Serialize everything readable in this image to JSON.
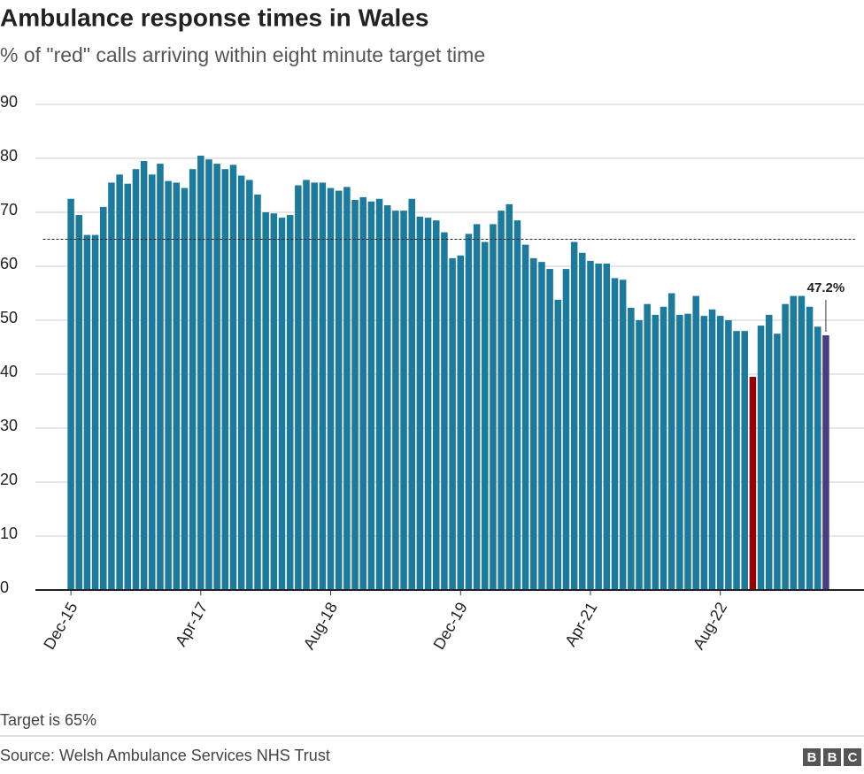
{
  "chart_data": {
    "type": "bar",
    "title": "Ambulance response times in Wales",
    "subtitle": "% of \"red\" calls arriving within eight minute target time",
    "categories": [
      "Dec-15",
      null,
      null,
      null,
      null,
      null,
      null,
      null,
      null,
      null,
      null,
      null,
      null,
      null,
      null,
      null,
      "Apr-17",
      null,
      null,
      null,
      null,
      null,
      null,
      null,
      null,
      null,
      null,
      null,
      null,
      null,
      null,
      null,
      "Aug-18",
      null,
      null,
      null,
      null,
      null,
      null,
      null,
      null,
      null,
      null,
      null,
      null,
      null,
      null,
      null,
      "Dec-19",
      null,
      null,
      null,
      null,
      null,
      null,
      null,
      null,
      null,
      null,
      null,
      null,
      null,
      null,
      null,
      "Apr-21",
      null,
      null,
      null,
      null,
      null,
      null,
      null,
      null,
      null,
      null,
      null,
      null,
      null,
      null,
      null,
      "Aug-22",
      null,
      null,
      null,
      null,
      null,
      null,
      null,
      null,
      null,
      null,
      null,
      null,
      null
    ],
    "values": [
      72.5,
      69.5,
      65.8,
      65.8,
      71,
      75.5,
      77,
      75.3,
      78,
      79.5,
      77,
      79,
      75.8,
      75.5,
      74.5,
      78,
      80.5,
      79.8,
      79,
      78,
      78.8,
      76.8,
      76,
      73.3,
      70,
      69.8,
      69,
      69.5,
      75,
      76,
      75.5,
      75.5,
      74.5,
      74,
      74.7,
      72.3,
      72.8,
      72,
      72.5,
      71.3,
      70.3,
      70.3,
      72.5,
      69.2,
      69,
      68.5,
      66.3,
      61.5,
      62,
      66,
      67.8,
      64.5,
      67.8,
      70.3,
      71.5,
      68.5,
      64,
      61.5,
      60.8,
      59.5,
      53.8,
      59.5,
      64.5,
      62.5,
      61,
      60.5,
      60.5,
      57.8,
      57.5,
      52.3,
      50,
      53,
      51,
      52.5,
      55,
      51,
      51.2,
      54.5,
      50.8,
      52,
      50.8,
      50,
      48,
      48,
      39.5,
      49,
      51,
      47.5,
      53,
      54.5,
      54.5,
      52.5,
      48.8,
      47.2
    ],
    "value_labels": [
      null,
      null,
      null,
      null,
      null,
      null,
      null,
      null,
      null,
      null,
      null,
      null,
      null,
      null,
      null,
      null,
      null,
      null,
      null,
      null,
      null,
      null,
      null,
      null,
      null,
      null,
      null,
      null,
      null,
      null,
      null,
      null,
      null,
      null,
      null,
      null,
      null,
      null,
      null,
      null,
      null,
      null,
      null,
      null,
      null,
      null,
      null,
      null,
      null,
      null,
      null,
      null,
      null,
      null,
      null,
      null,
      null,
      null,
      null,
      null,
      null,
      null,
      null,
      null,
      null,
      null,
      null,
      null,
      null,
      null,
      null,
      null,
      null,
      null,
      null,
      null,
      null,
      null,
      null,
      null,
      null,
      null,
      null,
      null,
      null,
      null,
      null,
      null,
      null,
      null,
      null,
      null,
      null,
      "47.2%"
    ],
    "color": "#1c7a9c",
    "highlights": [
      {
        "index": 84,
        "color": "#990000"
      },
      {
        "index": 93,
        "color": "#4a3b87"
      }
    ],
    "ylim": [
      0,
      90
    ],
    "yticks": [
      0,
      10,
      20,
      30,
      40,
      50,
      60,
      70,
      80,
      90
    ],
    "grid": true,
    "target": 65,
    "note": "Target is 65%",
    "source": "Source: Welsh Ambulance Services NHS Trust",
    "logo": [
      "B",
      "B",
      "C"
    ]
  }
}
